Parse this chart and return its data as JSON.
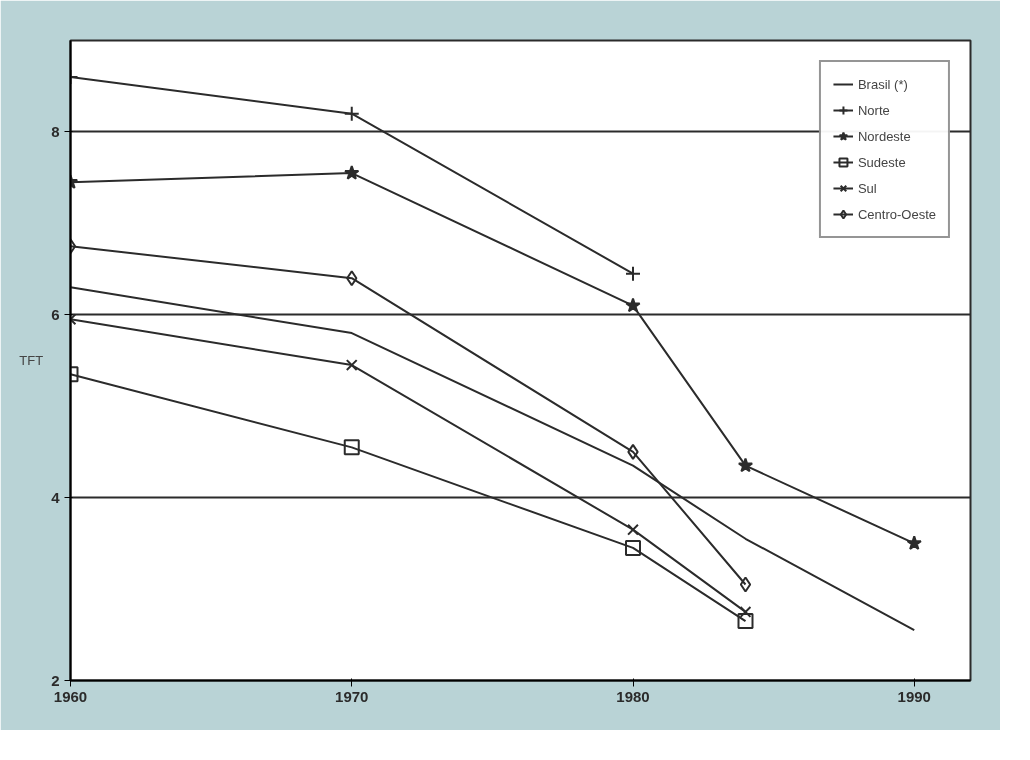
{
  "chart_data": {
    "type": "line",
    "ylabel": "TFT",
    "xlim": [
      1960,
      1992
    ],
    "xticks": [
      1960,
      1970,
      1980,
      1990
    ],
    "ylim": [
      2,
      9
    ],
    "yticks": [
      2,
      4,
      6,
      8
    ],
    "grid": "y",
    "legend": "top right",
    "series": [
      {
        "name": "Brasil (*)",
        "color": "#2b2b2b",
        "marker": "none",
        "x": [
          1960,
          1970,
          1980,
          1984,
          1990
        ],
        "values": [
          6.3,
          5.8,
          4.35,
          3.55,
          2.55
        ]
      },
      {
        "name": "Norte",
        "color": "#2b2b2b",
        "marker": "cross",
        "x": [
          1960,
          1970,
          1980
        ],
        "values": [
          8.6,
          8.2,
          6.45
        ]
      },
      {
        "name": "Nordeste",
        "color": "#2b2b2b",
        "marker": "star",
        "x": [
          1960,
          1970,
          1980,
          1984,
          1990
        ],
        "values": [
          7.45,
          7.55,
          6.1,
          4.35,
          3.5
        ]
      },
      {
        "name": "Sudeste",
        "color": "#2b2b2b",
        "marker": "square",
        "x": [
          1960,
          1970,
          1980,
          1984
        ],
        "values": [
          5.35,
          4.55,
          3.45,
          2.65
        ]
      },
      {
        "name": "Sul",
        "color": "#2b2b2b",
        "marker": "x",
        "x": [
          1960,
          1970,
          1980,
          1984
        ],
        "values": [
          5.95,
          5.45,
          3.65,
          2.75
        ]
      },
      {
        "name": "Centro-Oeste",
        "color": "#2b2b2b",
        "marker": "diamond",
        "x": [
          1960,
          1970,
          1980,
          1984
        ],
        "values": [
          6.75,
          6.4,
          4.5,
          3.05
        ]
      }
    ]
  }
}
